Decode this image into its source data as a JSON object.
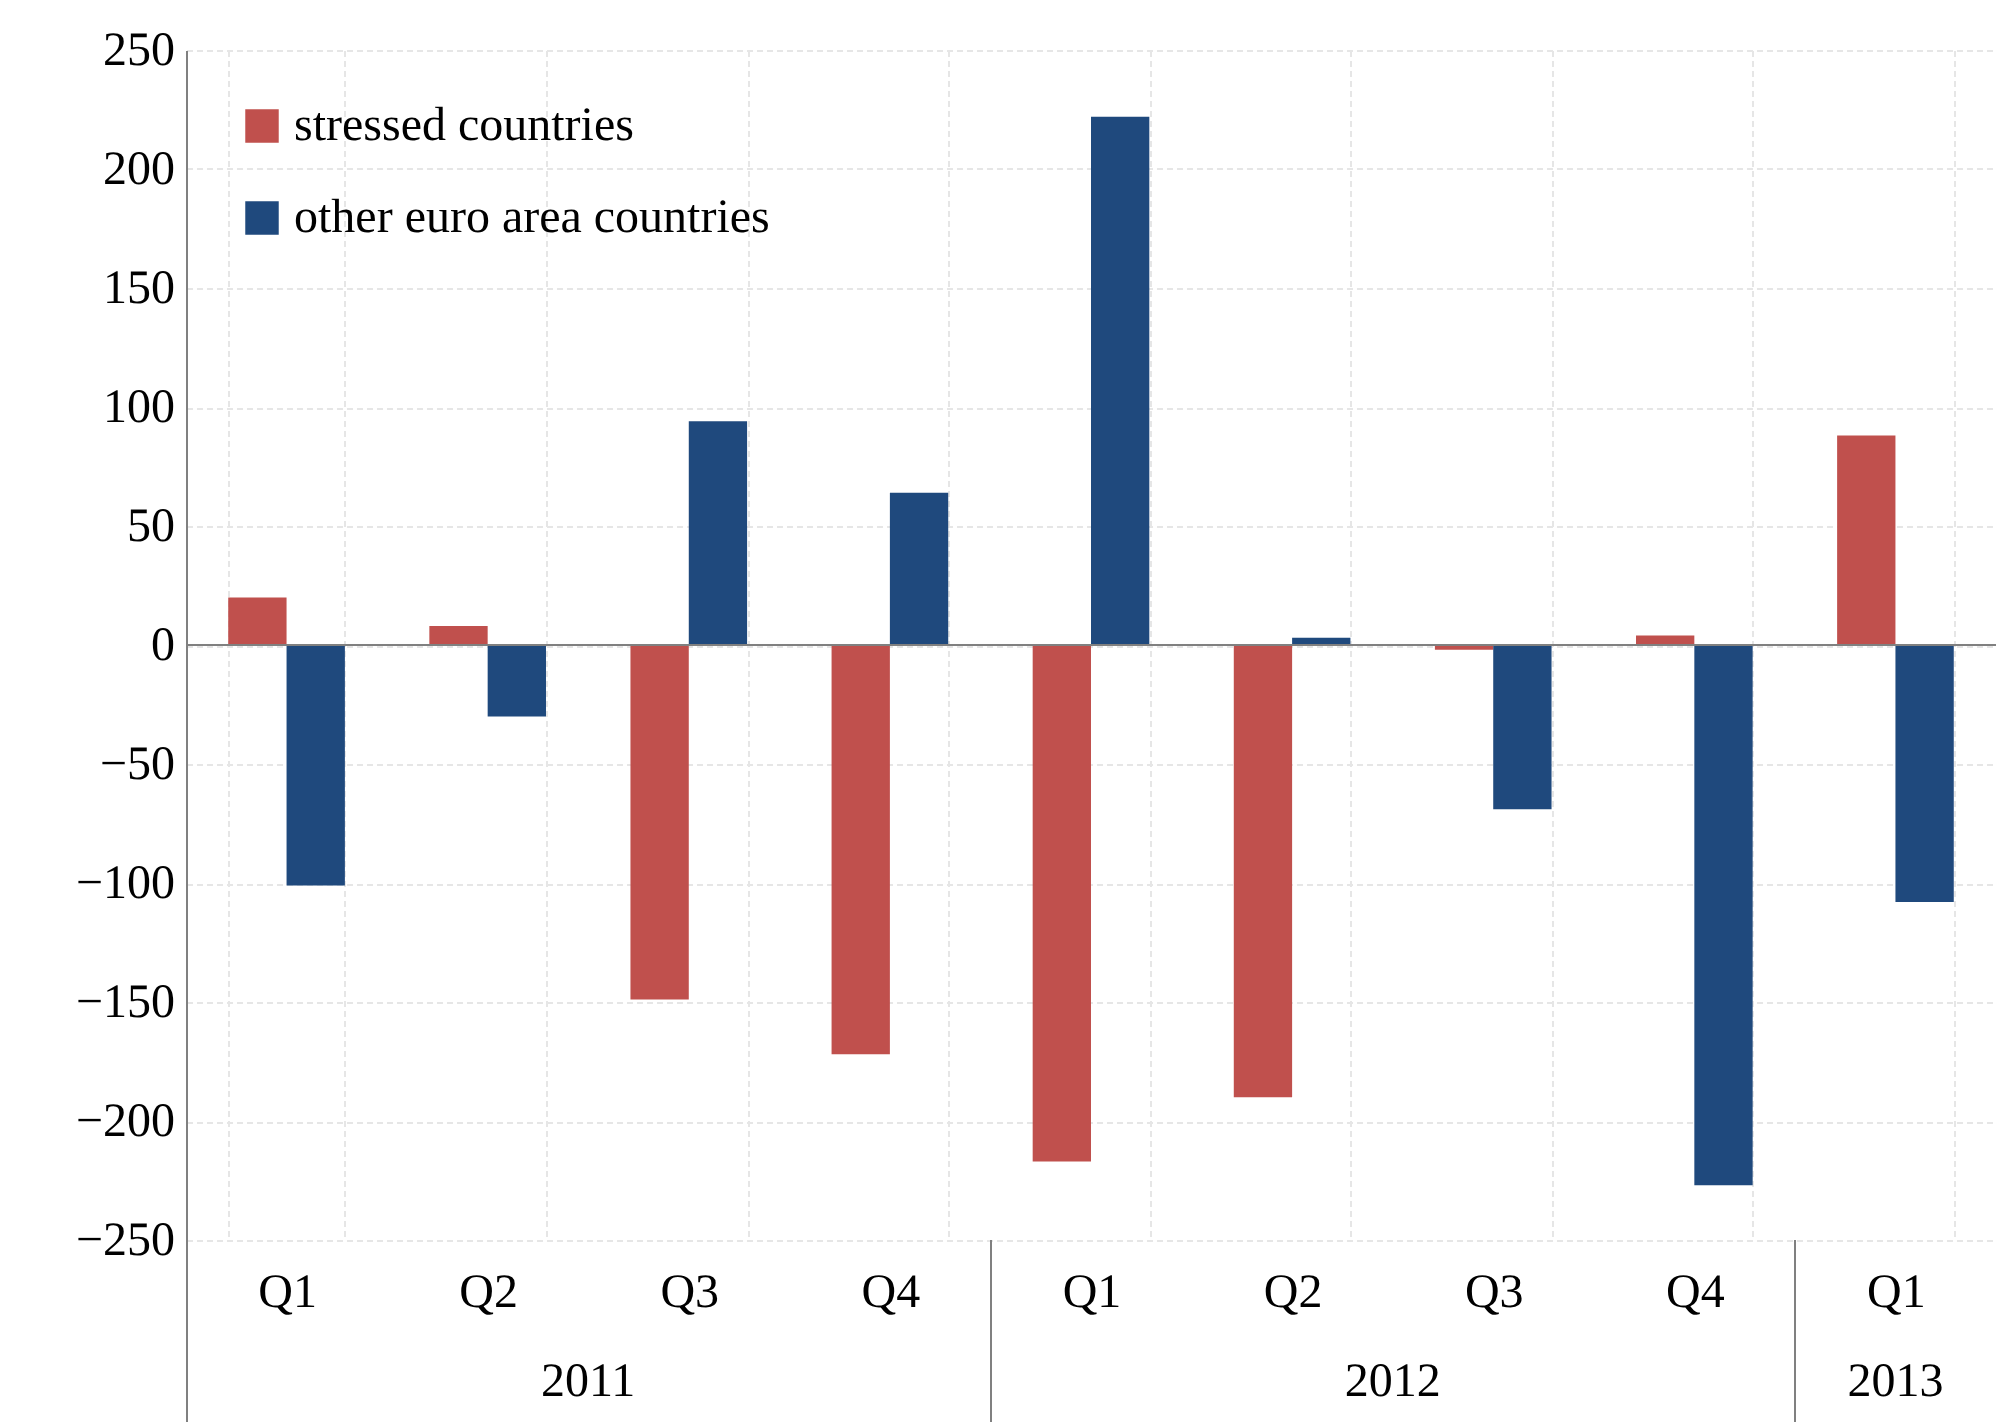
{
  "chart_data": {
    "type": "bar",
    "categories": [
      "Q1",
      "Q2",
      "Q3",
      "Q4",
      "Q1",
      "Q2",
      "Q3",
      "Q4",
      "Q1"
    ],
    "series": [
      {
        "name": "stressed countries",
        "color": "#c0504d",
        "values": [
          20,
          8,
          -149,
          -172,
          -217,
          -190,
          -2,
          4,
          88
        ]
      },
      {
        "name": "other euro area countries",
        "color": "#1f497d",
        "values": [
          -101,
          -30,
          94,
          64,
          222,
          3,
          -69,
          -227,
          -108
        ]
      }
    ],
    "ylim": [
      -250,
      250
    ],
    "yticks": [
      -250,
      -200,
      -150,
      -100,
      -50,
      0,
      50,
      100,
      150,
      200,
      250
    ],
    "ref_lines": [
      {
        "axis": "y",
        "value": 0,
        "color": "#808080"
      }
    ],
    "annotations": [
      "2011",
      "2012",
      "2013"
    ],
    "grid": true,
    "legend": "top left"
  }
}
